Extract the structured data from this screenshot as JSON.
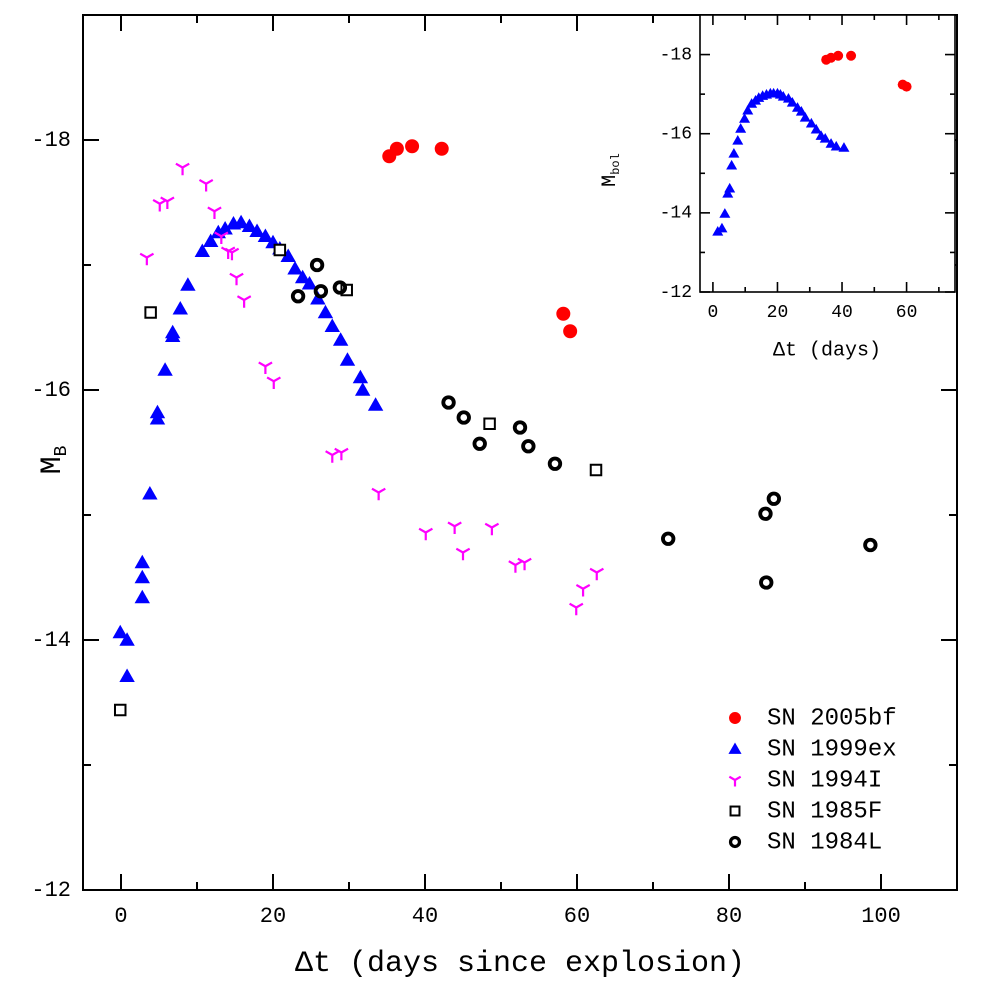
{
  "chart_data": [
    {
      "type": "scatter",
      "xlabel": "Δt (days since explosion)",
      "ylabel": "M",
      "ylabel_sub": "B",
      "xlim": [
        -5,
        110
      ],
      "ylim": [
        -12,
        -19
      ],
      "xticks": [
        0,
        20,
        40,
        60,
        80,
        100
      ],
      "xminor_ticks": [
        10,
        30,
        50,
        70,
        90,
        110
      ],
      "yticks": [
        -18,
        -16,
        -14,
        -12
      ],
      "yminor_ticks": [
        -17,
        -15,
        -13
      ],
      "legend": "lower right",
      "series": [
        {
          "name": "SN 2005bf",
          "color": "#ff0000",
          "marker": "circle",
          "x": [
            35.3,
            36.3,
            38.3,
            42.2,
            58.2,
            59.1
          ],
          "values": [
            -17.87,
            -17.93,
            -17.95,
            -17.93,
            -16.61,
            -16.47
          ]
        },
        {
          "name": "SN 1999ex",
          "color": "#0000ff",
          "marker": "triangle",
          "x": [
            -0.1,
            0.8,
            0.8,
            2.8,
            2.8,
            2.8,
            3.8,
            4.8,
            4.8,
            5.8,
            6.8,
            6.8,
            7.8,
            8.8,
            10.7,
            11.8,
            12.8,
            13.7,
            14.8,
            15.8,
            16.9,
            17.9,
            19.0,
            20.0,
            20.9,
            22.0,
            22.9,
            23.9,
            24.8,
            25.9,
            26.9,
            27.8,
            28.9,
            29.8,
            31.5,
            31.8,
            33.5
          ],
          "values": [
            -14.06,
            -14.0,
            -13.71,
            -14.34,
            -14.5,
            -14.62,
            -15.17,
            -15.82,
            -15.77,
            -16.16,
            -16.43,
            -16.46,
            -16.65,
            -16.84,
            -17.11,
            -17.19,
            -17.26,
            -17.29,
            -17.33,
            -17.34,
            -17.31,
            -17.27,
            -17.23,
            -17.18,
            -17.13,
            -17.07,
            -16.97,
            -16.9,
            -16.85,
            -16.73,
            -16.62,
            -16.51,
            -16.4,
            -16.24,
            -16.1,
            -16.0,
            -15.88
          ]
        },
        {
          "name": "SN 1994I",
          "color": "#ff00ff",
          "marker": "tri",
          "x": [
            3.4,
            5.1,
            6.1,
            8.1,
            11.2,
            12.3,
            13.2,
            14.1,
            14.6,
            15.2,
            16.2,
            19.0,
            20.1,
            27.8,
            29.0,
            33.9,
            40.1,
            43.9,
            45.0,
            48.8,
            51.9,
            53.1,
            59.9,
            60.8,
            62.6
          ],
          "values": [
            -17.06,
            -17.49,
            -17.51,
            -17.78,
            -17.65,
            -17.43,
            -17.23,
            -17.11,
            -17.1,
            -16.9,
            -16.72,
            -16.19,
            -16.07,
            -15.48,
            -15.5,
            -15.18,
            -14.86,
            -14.91,
            -14.7,
            -14.9,
            -14.6,
            -14.62,
            -14.26,
            -14.41,
            -14.54
          ]
        },
        {
          "name": "SN 1985F",
          "color": "#000000",
          "marker": "square",
          "x": [
            -0.1,
            3.9,
            20.9,
            29.7,
            48.5,
            62.5
          ],
          "values": [
            -13.44,
            -16.62,
            -17.12,
            -16.8,
            -15.73,
            -15.36
          ]
        },
        {
          "name": "SN 1984L",
          "color": "#000000",
          "marker": "ring",
          "x": [
            23.3,
            25.8,
            26.3,
            28.8,
            43.1,
            45.1,
            47.2,
            52.5,
            53.6,
            57.1,
            72.0,
            84.8,
            85.9,
            84.9,
            98.6
          ],
          "values": [
            -16.75,
            -17.0,
            -16.79,
            -16.82,
            -15.9,
            -15.78,
            -15.57,
            -15.7,
            -15.55,
            -15.41,
            -14.81,
            -15.01,
            -15.13,
            -14.46,
            -14.76
          ]
        }
      ]
    },
    {
      "type": "scatter",
      "xlabel": "Δt (days)",
      "ylabel": "M",
      "ylabel_sub": "bol",
      "xlim": [
        -4,
        75
      ],
      "ylim": [
        -12,
        -19
      ],
      "xticks": [
        0,
        20,
        40,
        60
      ],
      "xminor_ticks": [
        10,
        30,
        50,
        70
      ],
      "yticks": [
        -18,
        -16,
        -14,
        -12
      ],
      "yminor_ticks": [
        -17,
        -15,
        -13
      ],
      "series": [
        {
          "color": "#ff0000",
          "marker": "circle",
          "x": [
            35.1,
            36.6,
            38.8,
            42.8,
            58.8,
            60.0
          ],
          "values": [
            -17.87,
            -17.92,
            -17.97,
            -17.97,
            -17.24,
            -17.19
          ]
        },
        {
          "color": "#0000ff",
          "marker": "triangle",
          "x": [
            1.5,
            2.8,
            3.7,
            4.6,
            5.2,
            5.8,
            6.5,
            7.7,
            8.6,
            9.8,
            10.8,
            12.0,
            13.2,
            14.2,
            15.4,
            16.6,
            17.8,
            18.8,
            20.0,
            20.9,
            21.8,
            23.4,
            24.6,
            26.2,
            27.4,
            28.6,
            30.5,
            32.0,
            33.5,
            34.8,
            36.6,
            38.2,
            40.6
          ],
          "values": [
            -13.53,
            -13.61,
            -13.98,
            -14.49,
            -14.62,
            -15.2,
            -15.5,
            -15.83,
            -16.13,
            -16.38,
            -16.59,
            -16.76,
            -16.84,
            -16.91,
            -16.96,
            -16.99,
            -17.02,
            -17.02,
            -17.02,
            -16.99,
            -16.94,
            -16.89,
            -16.79,
            -16.66,
            -16.56,
            -16.41,
            -16.26,
            -16.11,
            -15.95,
            -15.88,
            -15.75,
            -15.68,
            -15.65
          ]
        }
      ]
    }
  ]
}
